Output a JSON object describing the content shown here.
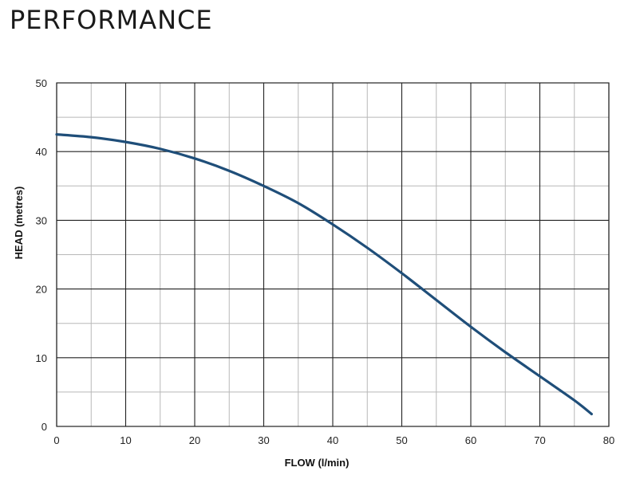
{
  "page": {
    "title": "PERFORMANCE"
  },
  "colors": {
    "curve": "#1f4e79",
    "major_grid": "#222222",
    "minor_grid": "#b8b8b8"
  },
  "chart_data": {
    "type": "line",
    "title": "",
    "xlabel": "FLOW (l/min)",
    "ylabel": "HEAD (metres)",
    "xlim": [
      0,
      80
    ],
    "ylim": [
      0,
      50
    ],
    "x_ticks": [
      0,
      10,
      20,
      30,
      40,
      50,
      60,
      70,
      80
    ],
    "y_ticks": [
      0,
      10,
      20,
      30,
      40,
      50
    ],
    "x_tick_labels": [
      "0",
      "10",
      "20",
      "30",
      "40",
      "50",
      "60",
      "70",
      "80"
    ],
    "y_tick_labels": [
      "0",
      "10",
      "20",
      "30",
      "40",
      "50"
    ],
    "minor_grid_step": {
      "x": 5,
      "y": 5
    },
    "grid": true,
    "legend": "none",
    "series": [
      {
        "x": [
          0,
          5,
          10,
          15,
          20,
          25,
          30,
          35,
          40,
          45,
          50,
          55,
          60,
          65,
          70,
          75,
          77.5
        ],
        "y": [
          42.5,
          42.1,
          41.4,
          40.4,
          39.0,
          37.2,
          35.0,
          32.5,
          29.4,
          26.0,
          22.3,
          18.4,
          14.5,
          10.8,
          7.3,
          3.8,
          1.8
        ]
      }
    ]
  }
}
